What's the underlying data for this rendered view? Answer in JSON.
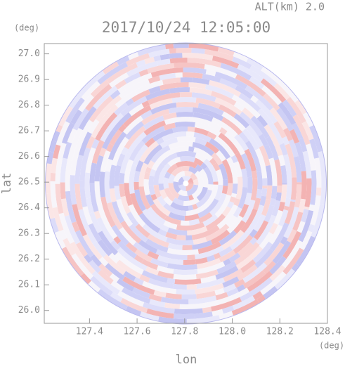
{
  "chart_data": {
    "type": "radar-image",
    "title": "2017/10/24 12:05:00",
    "subtitle": "ALT(km) 2.0",
    "x_label": "lon",
    "y_label": "lat",
    "x_unit": "(deg)",
    "y_unit": "(deg)",
    "xlim": [
      127.21,
      128.4
    ],
    "xticks": [
      127.4,
      127.6,
      127.8,
      {
        "value": 128,
        "label": "128.0"
      },
      128.2,
      128.4
    ],
    "ylim": [
      25.95,
      27.04
    ],
    "yticks": [
      {
        "value": 26,
        "label": "26.0"
      },
      26.1,
      26.2,
      26.3,
      26.4,
      26.5,
      26.6,
      26.7,
      26.8,
      26.9,
      {
        "value": 27,
        "label": "27.0"
      }
    ]
  }
}
